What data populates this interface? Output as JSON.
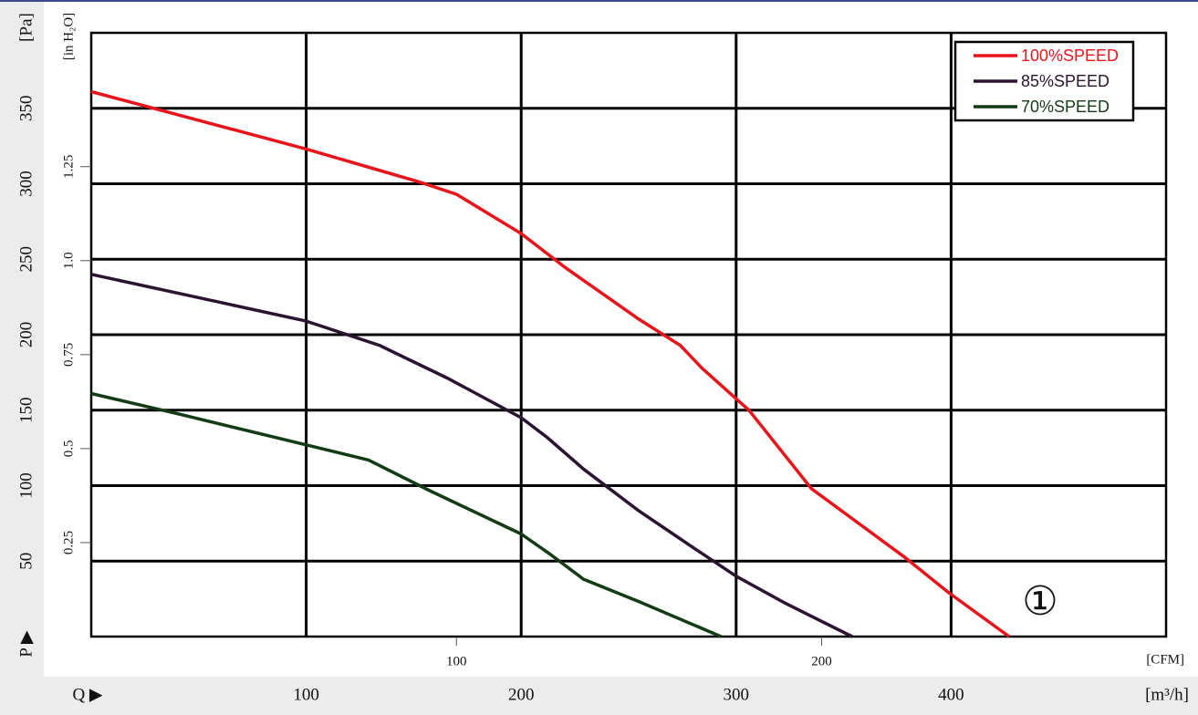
{
  "chart_data": {
    "type": "line",
    "x_label": "[m³/h]",
    "x2_label": "[CFM]",
    "y_label": "[Pa]",
    "y2_label": "[in H₂O]",
    "x_symbol": "Q ▶",
    "y_symbol": "P ▶",
    "annotation": "①",
    "xlim": [
      0,
      500
    ],
    "xticks": [
      100,
      200,
      300,
      400
    ],
    "x2lim": [
      0,
      294.3
    ],
    "x2ticks": [
      100,
      200
    ],
    "ylim": [
      0,
      400
    ],
    "yticks": [
      50,
      100,
      150,
      200,
      250,
      300,
      350
    ],
    "y2lim": [
      0,
      1.606
    ],
    "y2ticks": [
      0.25,
      0.5,
      0.75,
      {
        "value": 1,
        "label": "1.0"
      },
      1.25
    ],
    "grid": true,
    "legend": "upper right",
    "series": [
      {
        "name": "100%SPEED",
        "color": "#e8141b",
        "x": [
          0,
          100,
          153,
          170,
          200,
          221,
          255,
          274,
          284,
          306,
          335,
          357,
          378,
          399,
          427
        ],
        "values": [
          361,
          323,
          301,
          293,
          267,
          244,
          210,
          193,
          178,
          150,
          98,
          75,
          53,
          29,
          0
        ]
      },
      {
        "name": "85%SPEED",
        "color": "#2a1430",
        "x": [
          0,
          42,
          100,
          134,
          166,
          200,
          212,
          229,
          255,
          280,
          300,
          323,
          354
        ],
        "values": [
          240,
          227,
          209,
          193,
          171,
          145,
          132,
          111,
          83,
          59,
          40,
          22,
          0
        ]
      },
      {
        "name": "70%SPEED",
        "color": "#143a16",
        "x": [
          0,
          42,
          100,
          129,
          157,
          200,
          214,
          229,
          255,
          293
        ],
        "values": [
          161,
          147,
          127,
          117,
          97,
          68,
          54,
          38,
          23,
          0
        ]
      }
    ]
  }
}
